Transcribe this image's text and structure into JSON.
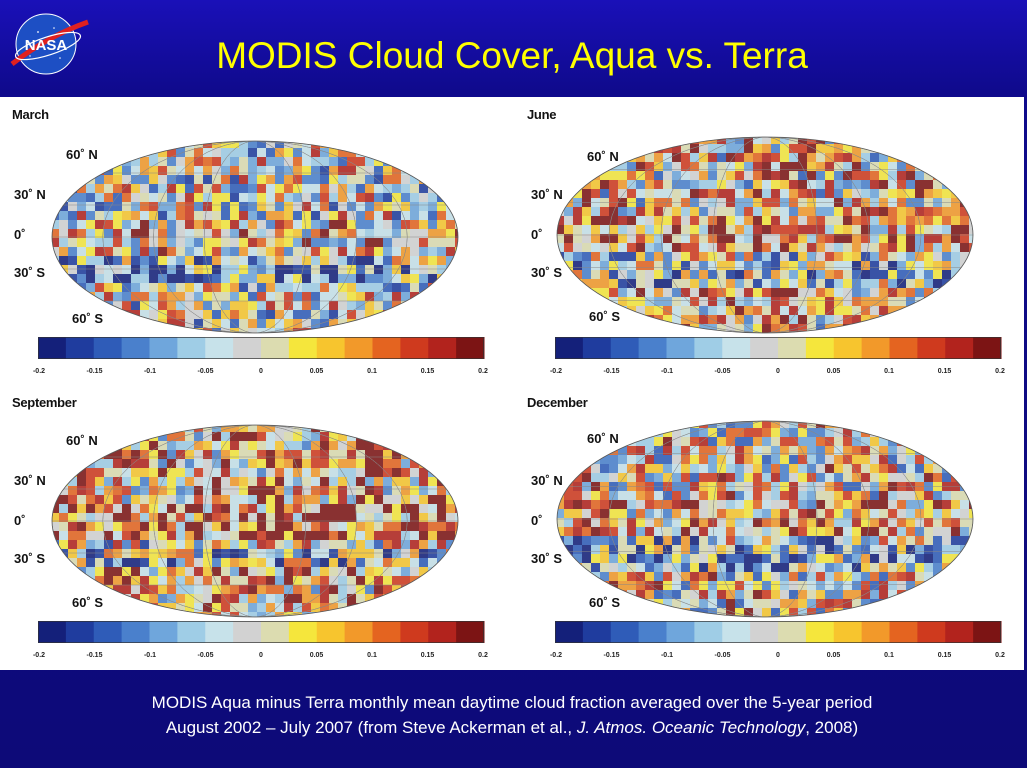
{
  "slide": {
    "title": "MODIS Cloud Cover, Aqua vs. Terra",
    "logo_text": "NASA",
    "caption_line1": "MODIS Aqua minus Terra monthly mean daytime cloud fraction averaged over the 5-year period",
    "caption_line2_a": "August 2002 – July 2007 (from Steve Ackerman et al., ",
    "caption_line2_journal": "J. Atmos. Oceanic Technology",
    "caption_line2_b": ", 2008)"
  },
  "latitude_labels": [
    "60˚ N",
    "30˚ N",
    "0˚",
    "30˚ S",
    "60˚ S"
  ],
  "colorbar": {
    "ticks": [
      "-0.2",
      "-0.15",
      "-0.1",
      "-0.05",
      "0",
      "0.05",
      "0.1",
      "0.15",
      "0.2"
    ],
    "tick_values": [
      -0.2,
      -0.15,
      -0.1,
      -0.05,
      0,
      0.05,
      0.1,
      0.15,
      0.2
    ],
    "colors": [
      "#14207a",
      "#1f3c9e",
      "#2f5cb8",
      "#4a80cc",
      "#6fa6dc",
      "#9fcde6",
      "#c7e2ea",
      "#d2d2d2",
      "#dcdcb0",
      "#f5e63c",
      "#f7c52e",
      "#f2992a",
      "#e46420",
      "#cf3a1e",
      "#b2231d",
      "#7c1414"
    ]
  },
  "panels": [
    {
      "id": "march",
      "title": "March"
    },
    {
      "id": "june",
      "title": "June"
    },
    {
      "id": "september",
      "title": "September"
    },
    {
      "id": "december",
      "title": "December"
    }
  ]
}
